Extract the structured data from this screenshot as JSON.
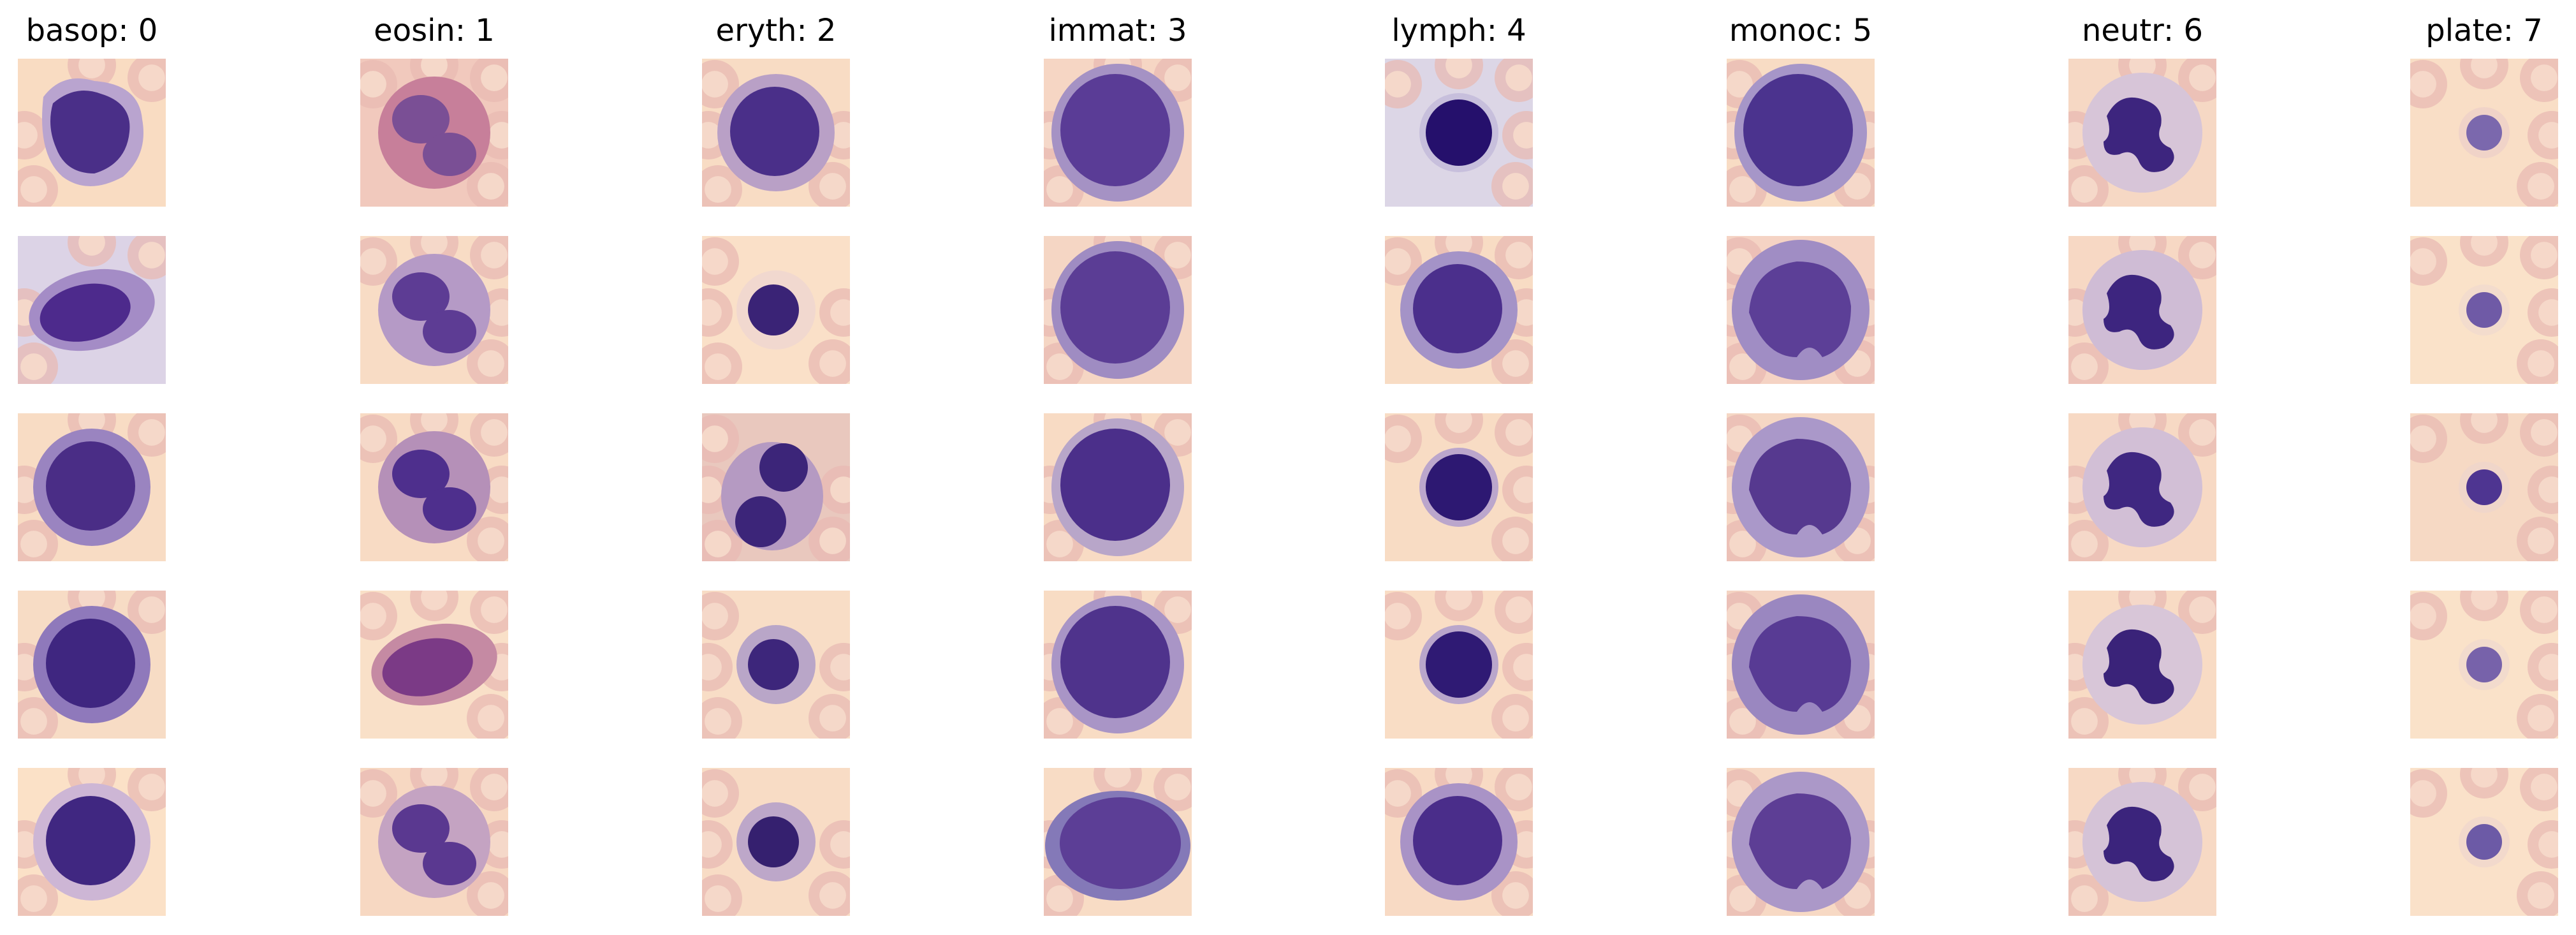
{
  "figure": {
    "columns": [
      {
        "title": "basop: 0",
        "rows": [
          {
            "bg": "#f9dcc2",
            "cytoplasm": "#b9a4cf",
            "nucleus": "#4a2f88",
            "type": "blob"
          },
          {
            "bg": "#dcd3e6",
            "cytoplasm": "#a48cc6",
            "nucleus": "#4d2a8c",
            "type": "elong"
          },
          {
            "bg": "#f8dcc4",
            "cytoplasm": "#9a84c0",
            "nucleus": "#4a2d86",
            "type": "round"
          },
          {
            "bg": "#f7dcc5",
            "cytoplasm": "#8f79bb",
            "nucleus": "#3f2680",
            "type": "round"
          },
          {
            "bg": "#fbe1c7",
            "cytoplasm": "#cdb6d5",
            "nucleus": "#402781",
            "type": "round"
          }
        ]
      },
      {
        "title": "eosin: 1",
        "rows": [
          {
            "bg": "#f1c9bd",
            "cytoplasm": "#c77f9a",
            "nucleus": "#7a4f95",
            "type": "eos"
          },
          {
            "bg": "#f8dcc5",
            "cytoplasm": "#b59ac6",
            "nucleus": "#5d3c94",
            "type": "eos"
          },
          {
            "bg": "#f8dbc4",
            "cytoplasm": "#b590b8",
            "nucleus": "#4e2f8d",
            "type": "eos"
          },
          {
            "bg": "#f9e0c8",
            "cytoplasm": "#c58aa3",
            "nucleus": "#7b3a86",
            "type": "elong"
          },
          {
            "bg": "#f7d8c2",
            "cytoplasm": "#c4a3c2",
            "nucleus": "#5a3890",
            "type": "eos"
          }
        ]
      },
      {
        "title": "eryth: 2",
        "rows": [
          {
            "bg": "#f8dcc4",
            "cytoplasm": "#b9a0c6",
            "nucleus": "#4a2f89",
            "type": "round"
          },
          {
            "bg": "#fae0c8",
            "cytoplasm": "#f1d8cf",
            "nucleus": "#3a2376",
            "type": "small"
          },
          {
            "bg": "#e9c8be",
            "cytoplasm": "#b59ac2",
            "nucleus": "#3c2579",
            "type": "double"
          },
          {
            "bg": "#f8ddc6",
            "cytoplasm": "#b9a6c8",
            "nucleus": "#3d267b",
            "type": "small"
          },
          {
            "bg": "#f8dcc5",
            "cytoplasm": "#bda7c9",
            "nucleus": "#35206f",
            "type": "small"
          }
        ]
      },
      {
        "title": "immat: 3",
        "rows": [
          {
            "bg": "#f6d6c4",
            "cytoplasm": "#a592c4",
            "nucleus": "#5a3c96",
            "type": "big"
          },
          {
            "bg": "#f5d6c4",
            "cytoplasm": "#9f8cc2",
            "nucleus": "#5b3d95",
            "type": "big"
          },
          {
            "bg": "#f8dbc4",
            "cytoplasm": "#b8a6c9",
            "nucleus": "#4b2f8a",
            "type": "big"
          },
          {
            "bg": "#f8dcc4",
            "cytoplasm": "#a995c6",
            "nucleus": "#4f338c",
            "type": "big"
          },
          {
            "bg": "#f8dcc5",
            "cytoplasm": "#8479b8",
            "nucleus": "#5c3e96",
            "type": "wide"
          }
        ]
      },
      {
        "title": "lymph: 4",
        "rows": [
          {
            "bg": "#dcd6e6",
            "cytoplasm": "#c7bfdc",
            "nucleus": "#25106c",
            "type": "lymph"
          },
          {
            "bg": "#f8dcc4",
            "cytoplasm": "#a493c7",
            "nucleus": "#4b2f8c",
            "type": "round"
          },
          {
            "bg": "#f8dcc4",
            "cytoplasm": "#bba6cc",
            "nucleus": "#2d1872",
            "type": "lymph"
          },
          {
            "bg": "#f9ddc5",
            "cytoplasm": "#b9a6cb",
            "nucleus": "#2f1a74",
            "type": "lymph"
          },
          {
            "bg": "#f8dac4",
            "cytoplasm": "#a993c6",
            "nucleus": "#4a2d8a",
            "type": "round"
          }
        ]
      },
      {
        "title": "monoc: 5",
        "rows": [
          {
            "bg": "#f8dcc4",
            "cytoplasm": "#a696c8",
            "nucleus": "#4b338e",
            "type": "big"
          },
          {
            "bg": "#f5d3c4",
            "cytoplasm": "#a08dc4",
            "nucleus": "#5c3f97",
            "type": "mono"
          },
          {
            "bg": "#f5d7c4",
            "cytoplasm": "#aa98c9",
            "nucleus": "#56398f",
            "type": "mono"
          },
          {
            "bg": "#f4d4c3",
            "cytoplasm": "#9a87c0",
            "nucleus": "#583b94",
            "type": "mono"
          },
          {
            "bg": "#f7d9c4",
            "cytoplasm": "#ab98c8",
            "nucleus": "#5d3e95",
            "type": "mono"
          }
        ]
      },
      {
        "title": "neutr: 6",
        "rows": [
          {
            "bg": "#f6d8c4",
            "cytoplasm": "#d7c5d8",
            "nucleus": "#3d257e",
            "type": "neut"
          },
          {
            "bg": "#f7d8c4",
            "cytoplasm": "#cfbcd5",
            "nucleus": "#3d257f",
            "type": "neut"
          },
          {
            "bg": "#f7d9c4",
            "cytoplasm": "#d2bfd6",
            "nucleus": "#3f2781",
            "type": "neut"
          },
          {
            "bg": "#f8dbc4",
            "cytoplasm": "#d8c6d8",
            "nucleus": "#3a2379",
            "type": "neut"
          },
          {
            "bg": "#f7d9c4",
            "cytoplasm": "#d5c3d7",
            "nucleus": "#3b247c",
            "type": "neut"
          }
        ]
      },
      {
        "title": "plate: 7",
        "rows": [
          {
            "bg": "#f9dec6",
            "cytoplasm": "#f0d3c8",
            "nucleus": "#7b68ad",
            "type": "plate"
          },
          {
            "bg": "#fae2c9",
            "cytoplasm": "#f3dccd",
            "nucleus": "#6f5aa6",
            "type": "plate"
          },
          {
            "bg": "#f6d9c4",
            "cytoplasm": "#f0d6ca",
            "nucleus": "#4e3591",
            "type": "plate"
          },
          {
            "bg": "#fae2c9",
            "cytoplasm": "#f2dbcd",
            "nucleus": "#7762aa",
            "type": "plate"
          },
          {
            "bg": "#fae1c9",
            "cytoplasm": "#f2d9cc",
            "nucleus": "#6c5aa6",
            "type": "plate"
          }
        ]
      }
    ]
  }
}
